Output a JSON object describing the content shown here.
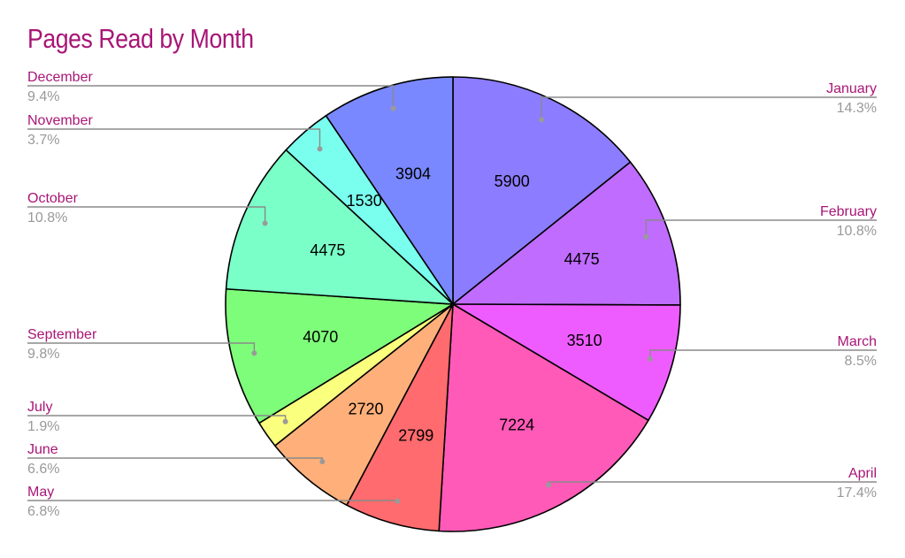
{
  "chart_data": {
    "type": "pie",
    "title": "Pages Read by Month",
    "start_angle_deg": 0,
    "direction": "clockwise",
    "slices": [
      {
        "label": "January",
        "value": 5900,
        "percent": "14.3%",
        "color": "#8c7cff",
        "side": "right"
      },
      {
        "label": "February",
        "value": 4475,
        "percent": "10.8%",
        "color": "#c06cff",
        "side": "right"
      },
      {
        "label": "March",
        "value": 3510,
        "percent": "8.5%",
        "color": "#ee5cff",
        "side": "right"
      },
      {
        "label": "April",
        "value": 7224,
        "percent": "17.4%",
        "color": "#ff5ab8",
        "side": "right"
      },
      {
        "label": "May",
        "value": 2799,
        "percent": "6.8%",
        "color": "#ff6b6e",
        "side": "left"
      },
      {
        "label": "June",
        "value": 2720,
        "percent": "6.6%",
        "color": "#ffb07a",
        "side": "left"
      },
      {
        "label": "July",
        "value": 799,
        "percent": "1.9%",
        "color": "#fbff7e",
        "side": "left"
      },
      {
        "label": "September",
        "value": 4070,
        "percent": "9.8%",
        "color": "#7efd7a",
        "side": "left"
      },
      {
        "label": "October",
        "value": 4475,
        "percent": "10.8%",
        "color": "#7affc8",
        "side": "left"
      },
      {
        "label": "November",
        "value": 1530,
        "percent": "3.7%",
        "color": "#7affef",
        "side": "left"
      },
      {
        "label": "December",
        "value": 3904,
        "percent": "9.4%",
        "color": "#7a88ff",
        "side": "left"
      }
    ]
  }
}
